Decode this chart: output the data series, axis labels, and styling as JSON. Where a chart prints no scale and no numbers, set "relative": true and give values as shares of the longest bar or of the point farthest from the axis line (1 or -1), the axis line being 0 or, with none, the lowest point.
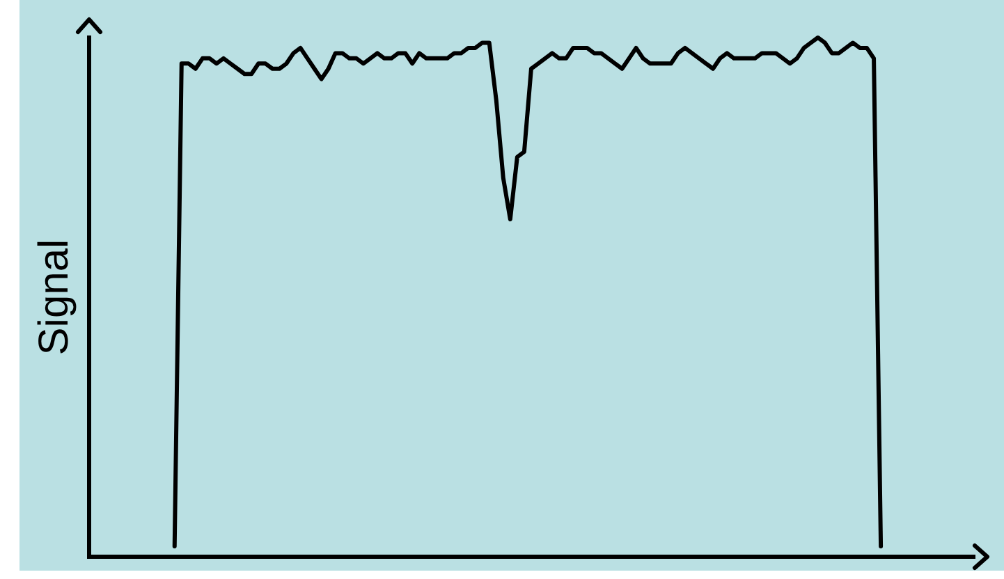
{
  "chart_data": {
    "type": "line",
    "ylabel": "Signal",
    "relative": true,
    "marker": "none",
    "color": "#000000",
    "categories": [
      null,
      null,
      null,
      null,
      null,
      null,
      null,
      null,
      null,
      null,
      null,
      null,
      null,
      null,
      null,
      null,
      null,
      null,
      null,
      null,
      null,
      null,
      null,
      null,
      null,
      null,
      null,
      null,
      null,
      null,
      null,
      null,
      null,
      null,
      null,
      null,
      null,
      null,
      null,
      null,
      null,
      null,
      null,
      null,
      null,
      null,
      null,
      null,
      null,
      null,
      null,
      null,
      null,
      null,
      null,
      null,
      null,
      null,
      null,
      null,
      null,
      null,
      null,
      null,
      null,
      null,
      null,
      null,
      null,
      null,
      null,
      null,
      null,
      null,
      null,
      null,
      null,
      null,
      null,
      null,
      null,
      null,
      null,
      null,
      null,
      null,
      null,
      null,
      null,
      null,
      null,
      null,
      null,
      null,
      null,
      null,
      null,
      null,
      null,
      null,
      null,
      null
    ],
    "values": [
      0.02,
      0.95,
      0.95,
      0.94,
      0.96,
      0.96,
      0.95,
      0.96,
      0.95,
      0.94,
      0.93,
      0.93,
      0.95,
      0.95,
      0.94,
      0.94,
      0.95,
      0.97,
      0.98,
      0.96,
      0.94,
      0.92,
      0.94,
      0.97,
      0.97,
      0.96,
      0.96,
      0.95,
      0.96,
      0.97,
      0.96,
      0.96,
      0.97,
      0.97,
      0.95,
      0.97,
      0.96,
      0.96,
      0.96,
      0.96,
      0.97,
      0.97,
      0.98,
      0.98,
      0.99,
      0.99,
      0.88,
      0.73,
      0.65,
      0.77,
      0.78,
      0.94,
      0.95,
      0.96,
      0.97,
      0.96,
      0.96,
      0.98,
      0.98,
      0.98,
      0.97,
      0.97,
      0.96,
      0.95,
      0.94,
      0.96,
      0.98,
      0.96,
      0.95,
      0.95,
      0.95,
      0.95,
      0.97,
      0.98,
      0.97,
      0.96,
      0.95,
      0.94,
      0.96,
      0.97,
      0.96,
      0.96,
      0.96,
      0.96,
      0.97,
      0.97,
      0.97,
      0.96,
      0.95,
      0.96,
      0.98,
      0.99,
      1.0,
      0.99,
      0.97,
      0.97,
      0.98,
      0.99,
      0.98,
      0.98,
      0.96,
      0.02
    ]
  }
}
